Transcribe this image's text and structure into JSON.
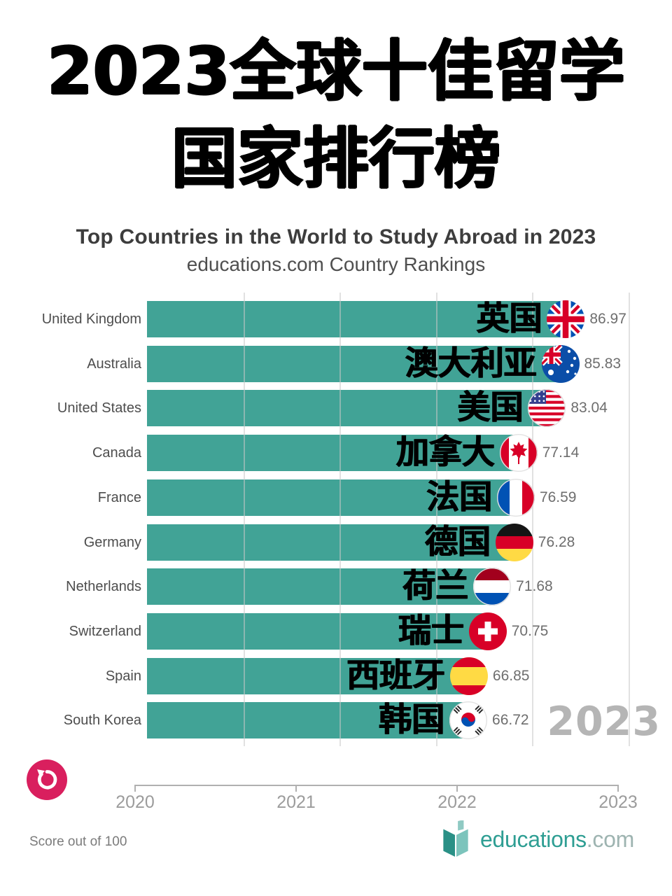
{
  "title": {
    "line1": "2023全球十佳留学",
    "line2": "国家排行榜"
  },
  "chart": {
    "bar_color": "#41A396",
    "replay_color": "#D91F5E",
    "replay_icon": "replay-icon"
  },
  "chart_data": {
    "type": "bar",
    "orientation": "horizontal",
    "title": "Top Countries in the World to Study Abroad in 2023",
    "subtitle": "educations.com Country Rankings",
    "value_axis": {
      "min": 0,
      "max": 100,
      "gridlines": [
        20,
        40,
        60,
        80,
        100
      ],
      "note": "Score out of 100"
    },
    "timeline": {
      "ticks": [
        "2020",
        "2021",
        "2022",
        "2023"
      ],
      "current": "2023"
    },
    "series": [
      {
        "rank": 1,
        "country": "United Kingdom",
        "country_zh": "英国",
        "flag": "uk-flag-icon",
        "value": 86.97
      },
      {
        "rank": 2,
        "country": "Australia",
        "country_zh": "澳大利亚",
        "flag": "australia-flag-icon",
        "value": 85.83
      },
      {
        "rank": 3,
        "country": "United States",
        "country_zh": "美国",
        "flag": "us-flag-icon",
        "value": 83.04
      },
      {
        "rank": 4,
        "country": "Canada",
        "country_zh": "加拿大",
        "flag": "canada-flag-icon",
        "value": 77.14
      },
      {
        "rank": 5,
        "country": "France",
        "country_zh": "法国",
        "flag": "france-flag-icon",
        "value": 76.59
      },
      {
        "rank": 6,
        "country": "Germany",
        "country_zh": "德国",
        "flag": "germany-flag-icon",
        "value": 76.28
      },
      {
        "rank": 7,
        "country": "Netherlands",
        "country_zh": "荷兰",
        "flag": "netherlands-flag-icon",
        "value": 71.68
      },
      {
        "rank": 8,
        "country": "Switzerland",
        "country_zh": "瑞士",
        "flag": "switzerland-flag-icon",
        "value": 70.75
      },
      {
        "rank": 9,
        "country": "Spain",
        "country_zh": "西班牙",
        "flag": "spain-flag-icon",
        "value": 66.85
      },
      {
        "rank": 10,
        "country": "South Korea",
        "country_zh": "韩国",
        "flag": "southkorea-flag-icon",
        "value": 66.72
      }
    ]
  },
  "logo": {
    "brand": "educations",
    "tld": ".com",
    "icon": "open-book-icon"
  }
}
